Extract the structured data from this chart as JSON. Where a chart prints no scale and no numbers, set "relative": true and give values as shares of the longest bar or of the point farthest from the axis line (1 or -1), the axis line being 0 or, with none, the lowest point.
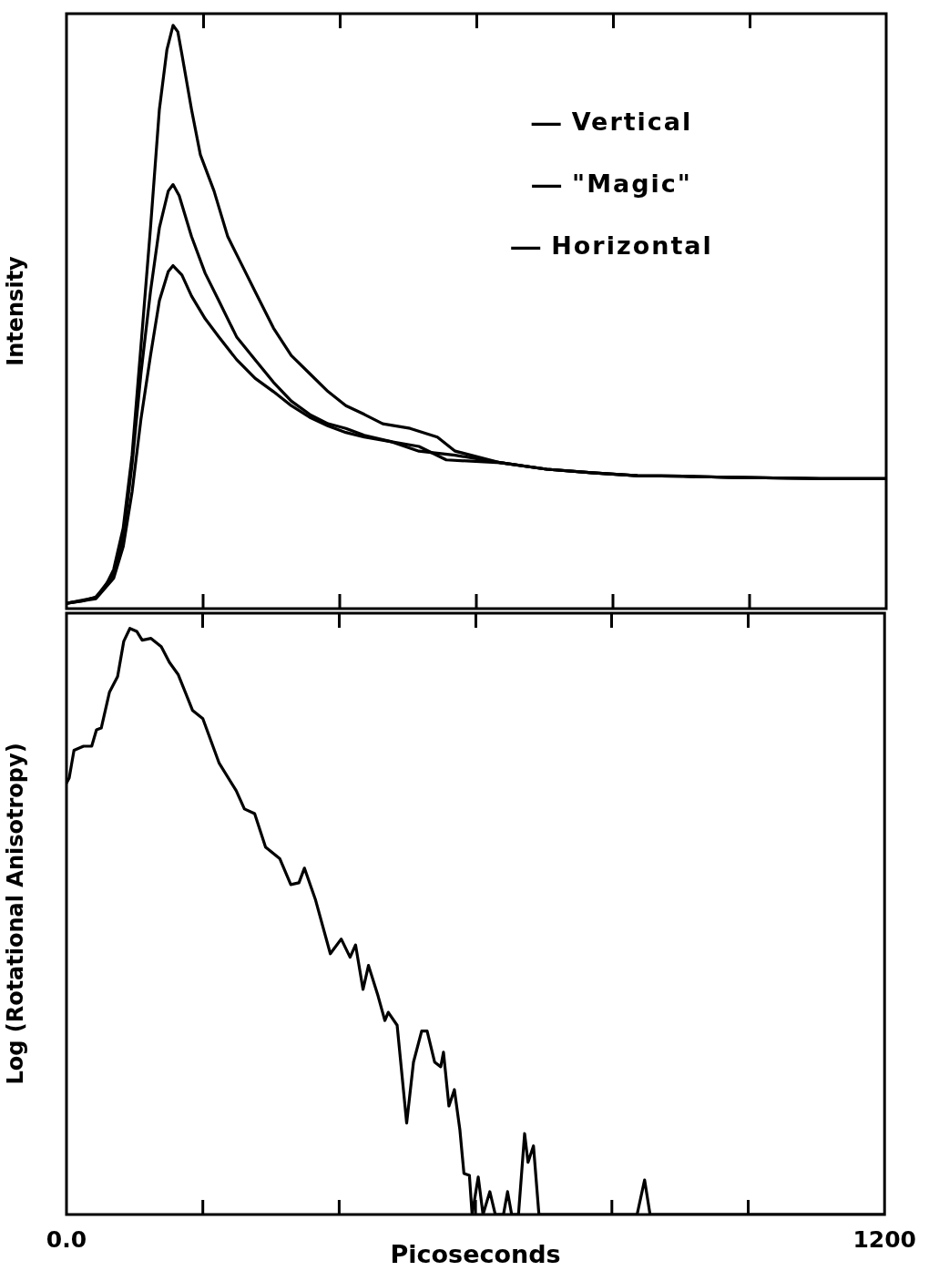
{
  "chart_data": [
    {
      "type": "line",
      "ylabel": "Intensity",
      "relative": true,
      "xlim": [
        0,
        1200
      ],
      "xticks": [
        0,
        200,
        400,
        600,
        800,
        1000,
        1200
      ],
      "tick_labels": false,
      "legend": "top right",
      "marker": "none",
      "series": [
        {
          "name": "Vertical",
          "color": "#000000",
          "x": [
            0,
            23,
            43,
            56,
            69,
            83,
            96,
            109,
            123,
            136,
            147,
            156,
            163,
            169,
            183,
            196,
            216,
            236,
            256,
            276,
            303,
            329,
            356,
            383,
            409,
            436,
            463,
            503,
            543,
            569,
            636,
            703,
            769,
            836,
            903,
            969,
            1103,
            1200
          ],
          "values": [
            0.009,
            0.013,
            0.02,
            0.036,
            0.067,
            0.138,
            0.263,
            0.45,
            0.653,
            0.856,
            0.958,
            1,
            0.989,
            0.95,
            0.856,
            0.778,
            0.716,
            0.638,
            0.591,
            0.544,
            0.481,
            0.434,
            0.403,
            0.372,
            0.348,
            0.333,
            0.317,
            0.309,
            0.294,
            0.27,
            0.25,
            0.239,
            0.233,
            0.228,
            0.227,
            0.225,
            0.223,
            0.223
          ]
        },
        {
          "name": "\"Magic\"",
          "color": "#000000",
          "x": [
            0,
            43,
            69,
            83,
            96,
            109,
            123,
            136,
            149,
            156,
            165,
            183,
            203,
            223,
            249,
            276,
            303,
            329,
            356,
            383,
            409,
            436,
            476,
            516,
            569,
            636,
            703,
            769,
            836,
            903,
            969,
            1103,
            1200
          ],
          "values": [
            0.009,
            0.019,
            0.059,
            0.122,
            0.247,
            0.403,
            0.544,
            0.653,
            0.716,
            0.727,
            0.708,
            0.638,
            0.575,
            0.528,
            0.466,
            0.427,
            0.388,
            0.356,
            0.333,
            0.317,
            0.309,
            0.297,
            0.286,
            0.27,
            0.263,
            0.25,
            0.239,
            0.233,
            0.228,
            0.227,
            0.225,
            0.223,
            0.223
          ]
        },
        {
          "name": "Horizontal",
          "color": "#000000",
          "x": [
            0,
            43,
            69,
            83,
            96,
            109,
            123,
            136,
            149,
            156,
            169,
            183,
            203,
            223,
            249,
            276,
            303,
            329,
            356,
            383,
            409,
            436,
            476,
            516,
            556,
            636,
            703,
            769,
            836,
            903,
            969,
            1103,
            1200
          ],
          "values": [
            0.009,
            0.017,
            0.052,
            0.106,
            0.2,
            0.325,
            0.434,
            0.528,
            0.578,
            0.588,
            0.572,
            0.536,
            0.497,
            0.466,
            0.427,
            0.395,
            0.372,
            0.348,
            0.328,
            0.313,
            0.302,
            0.294,
            0.286,
            0.278,
            0.255,
            0.25,
            0.239,
            0.233,
            0.228,
            0.227,
            0.225,
            0.223,
            0.223
          ]
        }
      ]
    },
    {
      "type": "line",
      "ylabel": "Log (Rotational Anisotropy)",
      "xlabel": "Picoseconds",
      "relative": true,
      "xlim": [
        0,
        1200
      ],
      "xticks": [
        {
          "value": 0,
          "label": "0.0"
        },
        {
          "value": 200,
          "label": null
        },
        {
          "value": 400,
          "label": null
        },
        {
          "value": 600,
          "label": null
        },
        {
          "value": 800,
          "label": null
        },
        {
          "value": 1000,
          "label": null
        },
        1200
      ],
      "tick_labels": "x",
      "marker": "none",
      "series": [
        {
          "color": "#000000",
          "x": [
            0,
            4,
            11,
            25,
            37,
            44,
            51,
            63,
            75,
            84,
            93,
            103,
            111,
            124,
            139,
            151,
            164,
            185,
            200,
            224,
            249,
            261,
            276,
            292,
            313,
            329,
            341,
            349,
            365,
            387,
            403,
            416,
            424,
            435,
            443,
            457,
            467,
            472,
            485,
            499,
            509,
            521,
            529,
            540,
            549,
            553,
            561,
            569,
            577,
            583,
            591,
            595,
            604,
            611,
            621,
            629,
            641,
            647,
            653,
            663,
            672,
            677,
            685,
            693,
            837,
            848,
            856,
            1200
          ],
          "values": [
            0.736,
            0.745,
            0.792,
            0.799,
            0.799,
            0.827,
            0.83,
            0.891,
            0.918,
            0.978,
            1,
            0.995,
            0.98,
            0.983,
            0.969,
            0.942,
            0.921,
            0.86,
            0.846,
            0.77,
            0.723,
            0.692,
            0.684,
            0.627,
            0.607,
            0.563,
            0.566,
            0.591,
            0.538,
            0.445,
            0.47,
            0.439,
            0.46,
            0.384,
            0.425,
            0.373,
            0.331,
            0.345,
            0.323,
            0.156,
            0.26,
            0.313,
            0.313,
            0.26,
            0.252,
            0.277,
            0.185,
            0.213,
            0.145,
            0.07,
            0.067,
            0,
            0.064,
            0,
            0.039,
            0,
            0,
            0.039,
            0,
            0,
            0.138,
            0.089,
            0.117,
            0,
            0,
            0.059,
            0,
            0
          ]
        }
      ]
    }
  ]
}
